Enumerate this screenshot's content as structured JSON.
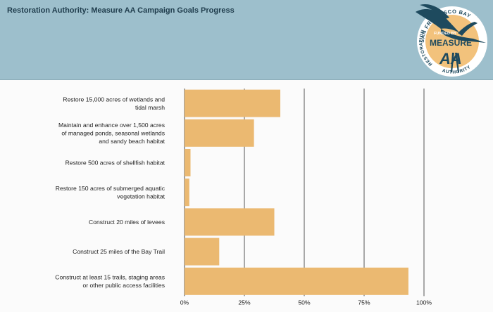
{
  "header": {
    "title": "Restoration Authority: Measure AA Campaign Goals Progress"
  },
  "logo": {
    "arc_top": "SAN FRANCISCO BAY",
    "arc_left": "RESTORATION",
    "arc_bottom": "AUTHORITY",
    "funded_by": "FUNDED BY",
    "measure": "MEASURE",
    "aa": "AA",
    "colors": {
      "badge": "#f2c27c",
      "heron": "#1e4a5e",
      "ring": "#ffffff"
    }
  },
  "chart_data": {
    "type": "bar",
    "orientation": "horizontal",
    "categories": [
      [
        "Restore 15,000 acres of wetlands and",
        "tidal marsh"
      ],
      [
        "Maintain and enhance over 1,500 acres",
        "of managed ponds, seasonal wetlands",
        "and sandy beach habitat"
      ],
      [
        "Restore 500 acres of shellfish habitat"
      ],
      [
        "Restore 150 acres of submerged aquatic",
        "vegetation habitat"
      ],
      [
        "Construct 20 miles of levees"
      ],
      [
        "Construct 25 miles of the Bay Trail"
      ],
      [
        "Construct at least 15 trails, staging areas",
        "or other public access facilities"
      ]
    ],
    "values": [
      40,
      29,
      2.5,
      2,
      37.5,
      14.5,
      93.5
    ],
    "xlim": [
      0,
      100
    ],
    "ticks": [
      "0%",
      "25%",
      "50%",
      "75%",
      "100%"
    ],
    "tick_values": [
      0,
      25,
      50,
      75,
      100
    ],
    "grid": true,
    "bar_color": "#ebb971"
  }
}
